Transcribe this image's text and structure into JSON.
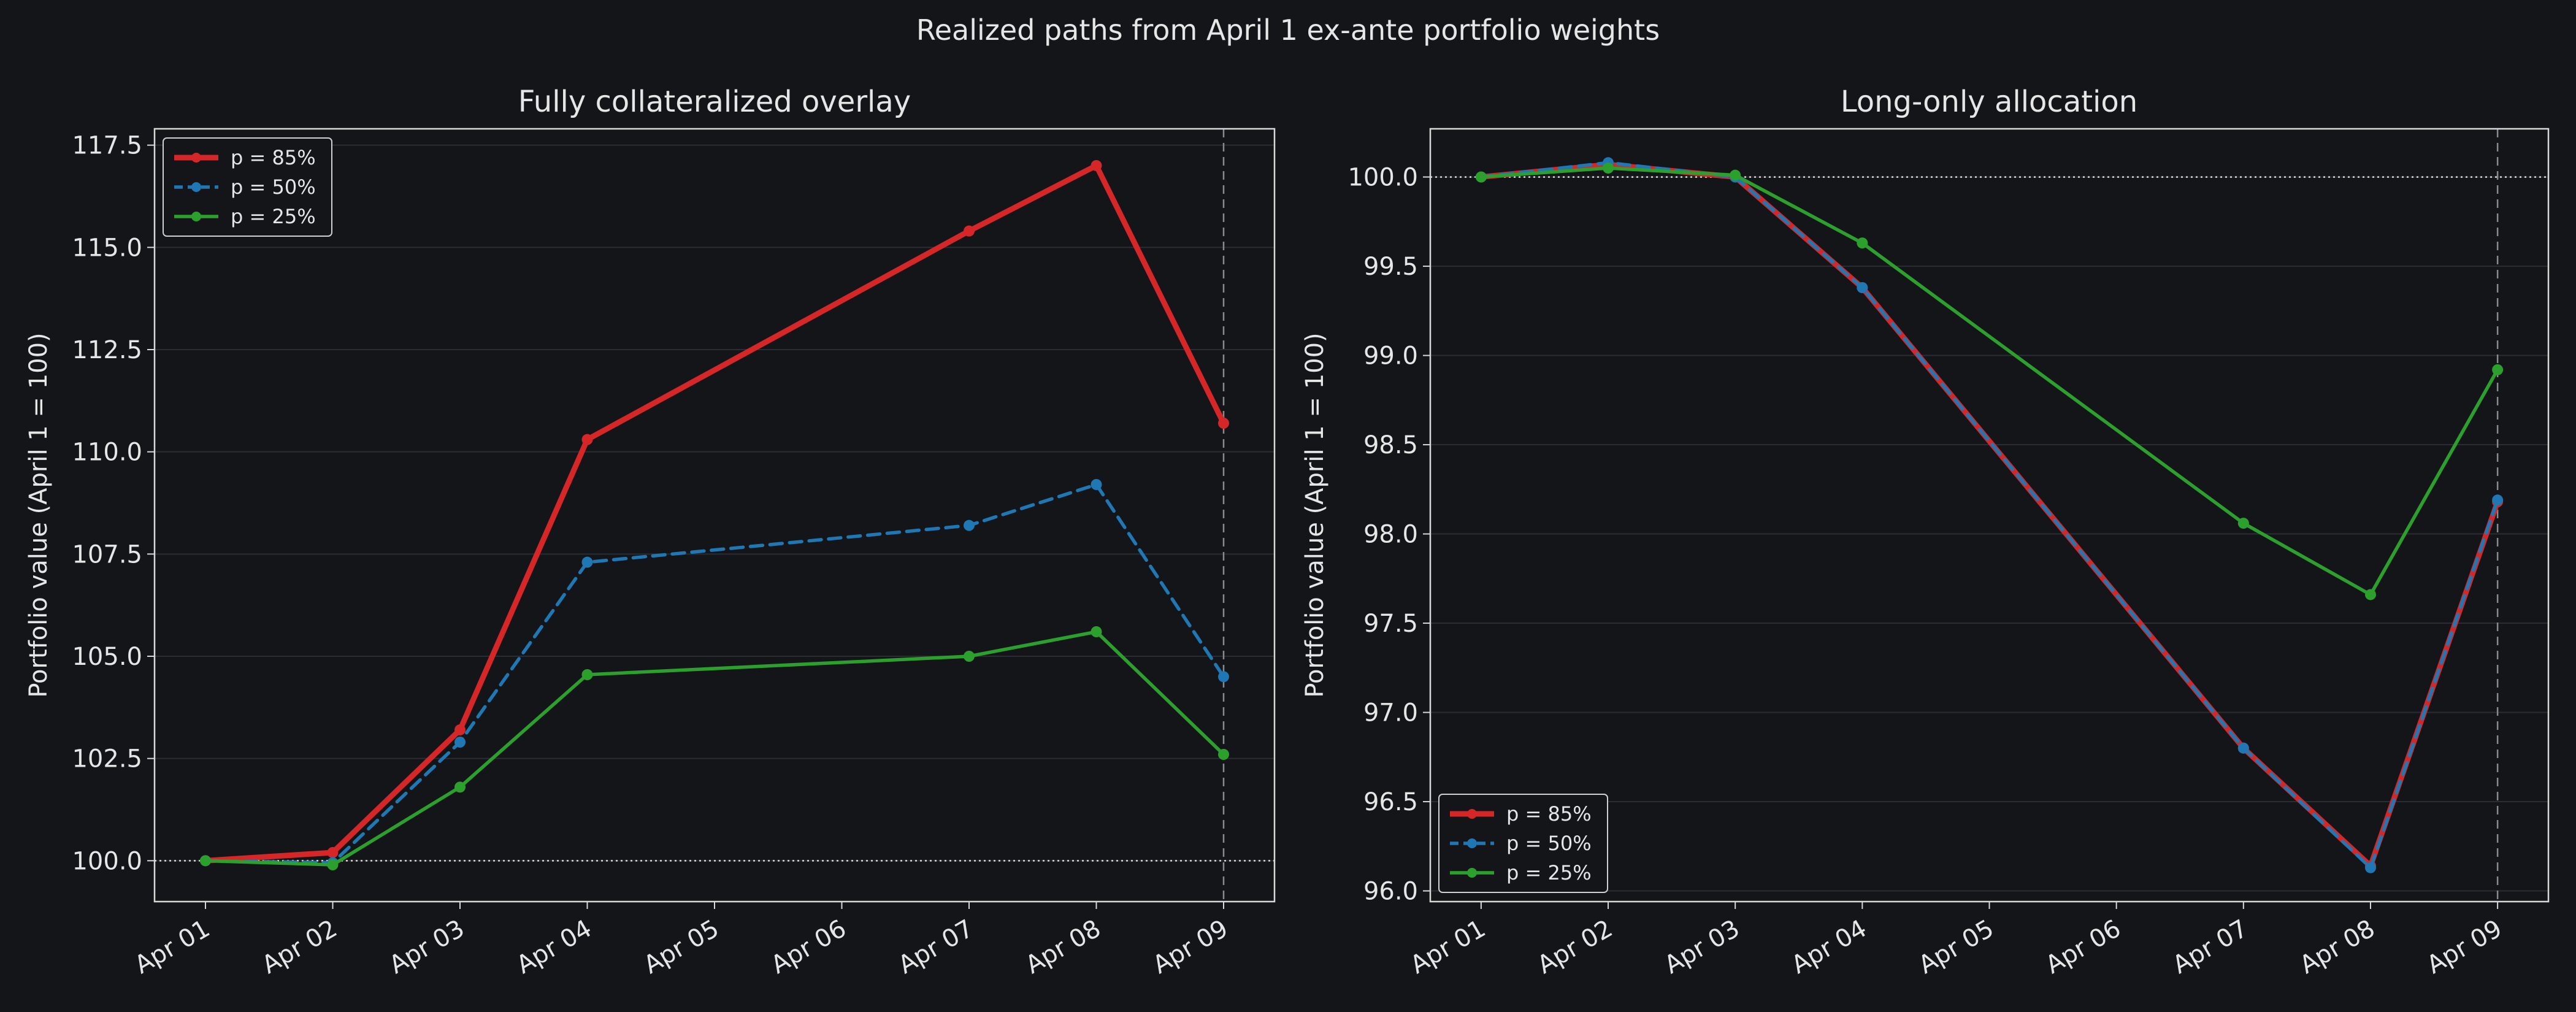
{
  "suptitle": "Realized paths from April 1 ex-ante portfolio weights",
  "colors": {
    "background": "#131519",
    "spine": "#d8d8d8",
    "grid": "#2a2d33",
    "text": "#e6e6e6",
    "p85": "#d62728",
    "p50": "#1f77b4",
    "p25": "#2ca02c"
  },
  "chart_data": [
    {
      "type": "line",
      "title": "Fully collateralized overlay",
      "ylabel": "Portfolio value (April 1 = 100)",
      "xlabel": "",
      "x": [
        "Apr 01",
        "Apr 02",
        "Apr 03",
        "Apr 04",
        "Apr 07",
        "Apr 08",
        "Apr 09"
      ],
      "x_ticks": [
        "Apr 01",
        "Apr 02",
        "Apr 03",
        "Apr 04",
        "Apr 05",
        "Apr 06",
        "Apr 07",
        "Apr 08",
        "Apr 09"
      ],
      "ylim": [
        99.0,
        117.9
      ],
      "y_ticks": [
        "100.0",
        "102.5",
        "105.0",
        "107.5",
        "110.0",
        "112.5",
        "115.0",
        "117.5"
      ],
      "grid": "horizontal",
      "reference_line_y": 100.0,
      "marker_line_x": "Apr 09",
      "legend_position": "upper-left",
      "series": [
        {
          "name": "p = 85%",
          "color": "#d62728",
          "style": "solid-thick",
          "values": [
            100.0,
            100.2,
            103.2,
            110.3,
            115.4,
            117.0,
            110.7
          ]
        },
        {
          "name": "p = 50%",
          "color": "#1f77b4",
          "style": "dashed",
          "values": [
            100.0,
            99.95,
            102.9,
            107.3,
            108.2,
            109.2,
            104.5
          ]
        },
        {
          "name": "p = 25%",
          "color": "#2ca02c",
          "style": "solid",
          "values": [
            100.0,
            99.9,
            101.8,
            104.55,
            105.0,
            105.6,
            102.6
          ]
        }
      ]
    },
    {
      "type": "line",
      "title": "Long-only allocation",
      "ylabel": "Portfolio value (April 1 = 100)",
      "xlabel": "",
      "x": [
        "Apr 01",
        "Apr 02",
        "Apr 03",
        "Apr 04",
        "Apr 07",
        "Apr 08",
        "Apr 09"
      ],
      "x_ticks": [
        "Apr 01",
        "Apr 02",
        "Apr 03",
        "Apr 04",
        "Apr 05",
        "Apr 06",
        "Apr 07",
        "Apr 08",
        "Apr 09"
      ],
      "ylim": [
        95.94,
        100.27
      ],
      "y_ticks": [
        "96.0",
        "96.5",
        "97.0",
        "97.5",
        "98.0",
        "98.5",
        "99.0",
        "99.5",
        "100.0"
      ],
      "grid": "horizontal",
      "reference_line_y": 100.0,
      "marker_line_x": "Apr 09",
      "legend_position": "lower-left",
      "series": [
        {
          "name": "p = 85%",
          "color": "#d62728",
          "style": "solid-thick",
          "values": [
            100.0,
            100.07,
            100.0,
            99.38,
            96.8,
            96.14,
            98.18
          ]
        },
        {
          "name": "p = 50%",
          "color": "#1f77b4",
          "style": "dashed",
          "values": [
            100.0,
            100.08,
            100.0,
            99.38,
            96.8,
            96.13,
            98.19
          ]
        },
        {
          "name": "p = 25%",
          "color": "#2ca02c",
          "style": "solid",
          "values": [
            100.0,
            100.05,
            100.01,
            99.63,
            98.06,
            97.66,
            98.92
          ]
        }
      ]
    }
  ]
}
